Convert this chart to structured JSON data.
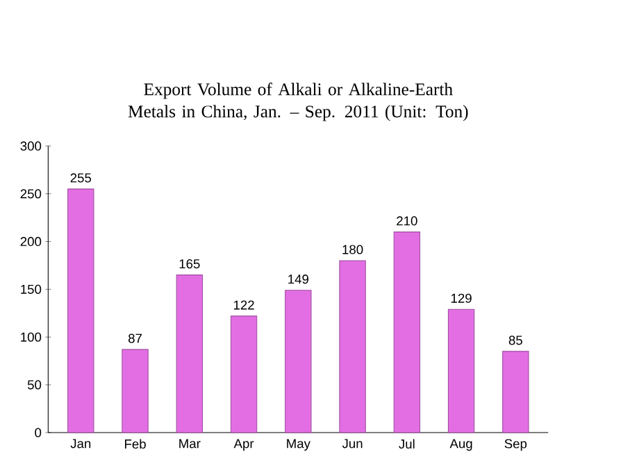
{
  "chart_data": {
    "type": "bar",
    "title": "Export Volume of Alkali or Alkaline-Earth Metals in China, Jan. – Sep. 2011 (Unit: Ton)",
    "categories": [
      "Jan",
      "Feb",
      "Mar",
      "Apr",
      "May",
      "Jun",
      "Jul",
      "Aug",
      "Sep"
    ],
    "values": [
      255,
      87,
      165,
      122,
      149,
      180,
      210,
      129,
      85
    ],
    "color": "#e36ee3",
    "ylim": [
      0,
      300
    ],
    "yticks": [
      0,
      50,
      100,
      150,
      200,
      250,
      300
    ],
    "data_labels": true,
    "grid": false
  }
}
